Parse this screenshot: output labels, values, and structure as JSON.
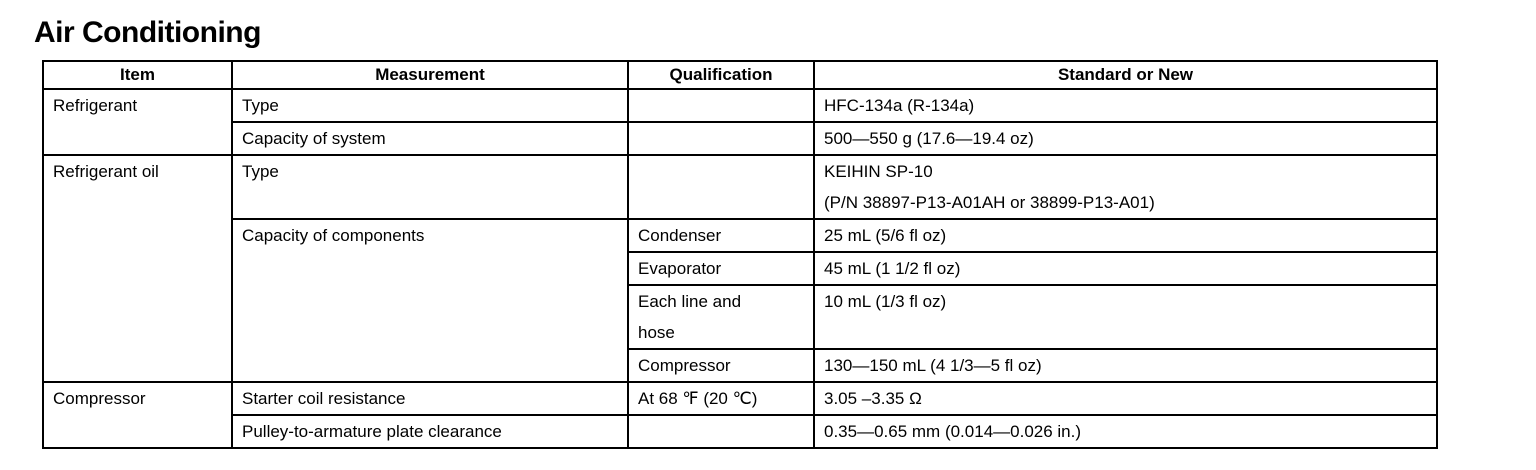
{
  "title": "Air Conditioning",
  "headers": [
    "Item",
    "Measurement",
    "Qualification",
    "Standard or New"
  ],
  "rows": {
    "refrigerant": {
      "item": "Refrigerant",
      "type": {
        "measurement": "Type",
        "qualification": "",
        "standard": "HFC-134a (R-134a)"
      },
      "capacity": {
        "measurement": "Capacity of system",
        "qualification": "",
        "standard": "500—550 g (17.6—19.4 oz)"
      }
    },
    "oil": {
      "item": "Refrigerant oil",
      "type": {
        "measurement": "Type",
        "qualification": "",
        "standard_line1": "KEIHIN SP-10",
        "standard_line2": "(P/N 38897-P13-A01AH or 38899-P13-A01)"
      },
      "components": {
        "measurement": "Capacity of components",
        "condenser": {
          "qualification": "Condenser",
          "standard": "25 mL (5/6 fl oz)"
        },
        "evaporator": {
          "qualification": "Evaporator",
          "standard": "45 mL (1 1/2 fl oz)"
        },
        "line": {
          "qualification_line1": "Each line and",
          "qualification_line2": "hose",
          "standard": "10 mL (1/3 fl oz)"
        },
        "compressor": {
          "qualification": "Compressor",
          "standard": "130—150 mL (4 1/3—5 fl oz)"
        }
      }
    },
    "compressor": {
      "item": "Compressor",
      "coil": {
        "measurement": "Starter coil resistance",
        "qualification": "At 68 ℉ (20 ℃)",
        "standard": "3.05 –3.35  Ω"
      },
      "clearance": {
        "measurement": "Pulley-to-armature plate clearance",
        "qualification": "",
        "standard": "0.35—0.65 mm (0.014—0.026 in.)"
      }
    }
  }
}
